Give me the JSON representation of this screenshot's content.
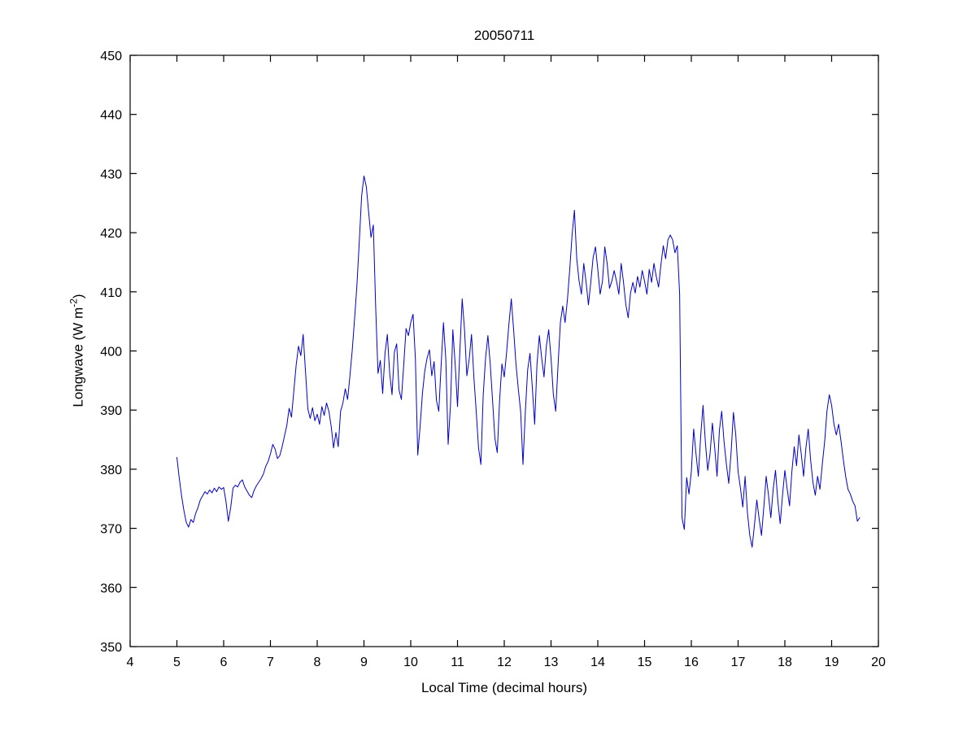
{
  "figure": {
    "title": "20050711",
    "xlabel": "Local Time (decimal hours)",
    "ylabel_prefix": "Longwave (W m",
    "ylabel_sup": "-2",
    "ylabel_suffix": ")",
    "line_color": "#0000cd",
    "axis_color": "#000000",
    "background": "#ffffff"
  },
  "chart_data": {
    "type": "line",
    "title": "20050711",
    "xlabel": "Local Time (decimal hours)",
    "ylabel": "Longwave (W m^-2)",
    "xlim": [
      4,
      20
    ],
    "ylim": [
      350,
      450
    ],
    "xticks": [
      4,
      5,
      6,
      7,
      8,
      9,
      10,
      11,
      12,
      13,
      14,
      15,
      16,
      17,
      18,
      19,
      20
    ],
    "yticks": [
      350,
      360,
      370,
      380,
      390,
      400,
      410,
      420,
      430,
      440,
      450
    ],
    "grid": false,
    "legend": null,
    "points": [
      [
        5.0,
        382
      ],
      [
        5.05,
        378.5
      ],
      [
        5.1,
        375.5
      ],
      [
        5.15,
        373
      ],
      [
        5.2,
        371
      ],
      [
        5.25,
        370.2
      ],
      [
        5.3,
        371.5
      ],
      [
        5.35,
        371
      ],
      [
        5.4,
        372.5
      ],
      [
        5.45,
        373.5
      ],
      [
        5.5,
        374.8
      ],
      [
        5.55,
        375.5
      ],
      [
        5.6,
        376.2
      ],
      [
        5.65,
        375.8
      ],
      [
        5.7,
        376.5
      ],
      [
        5.75,
        376
      ],
      [
        5.8,
        376.8
      ],
      [
        5.85,
        376.2
      ],
      [
        5.9,
        377
      ],
      [
        5.95,
        376.6
      ],
      [
        6.0,
        376.9
      ],
      [
        6.05,
        374.5
      ],
      [
        6.1,
        371.2
      ],
      [
        6.15,
        373.5
      ],
      [
        6.2,
        376.8
      ],
      [
        6.25,
        377.3
      ],
      [
        6.3,
        377
      ],
      [
        6.35,
        377.8
      ],
      [
        6.4,
        378.2
      ],
      [
        6.45,
        377
      ],
      [
        6.5,
        376.3
      ],
      [
        6.55,
        375.6
      ],
      [
        6.6,
        375.2
      ],
      [
        6.65,
        376.4
      ],
      [
        6.7,
        377.2
      ],
      [
        6.75,
        377.8
      ],
      [
        6.8,
        378.4
      ],
      [
        6.85,
        379.2
      ],
      [
        6.9,
        380.5
      ],
      [
        6.95,
        381.3
      ],
      [
        7.0,
        382.6
      ],
      [
        7.05,
        384.2
      ],
      [
        7.1,
        383.4
      ],
      [
        7.15,
        381.8
      ],
      [
        7.2,
        382.3
      ],
      [
        7.25,
        383.8
      ],
      [
        7.3,
        385.6
      ],
      [
        7.35,
        387.4
      ],
      [
        7.4,
        390.3
      ],
      [
        7.45,
        388.8
      ],
      [
        7.5,
        393.2
      ],
      [
        7.55,
        397.6
      ],
      [
        7.6,
        400.8
      ],
      [
        7.65,
        399.2
      ],
      [
        7.7,
        402.8
      ],
      [
        7.75,
        396.5
      ],
      [
        7.8,
        390.2
      ],
      [
        7.85,
        388.6
      ],
      [
        7.9,
        390.4
      ],
      [
        7.95,
        388.2
      ],
      [
        8.0,
        389.3
      ],
      [
        8.05,
        387.6
      ],
      [
        8.1,
        390.6
      ],
      [
        8.15,
        389.1
      ],
      [
        8.2,
        391.2
      ],
      [
        8.25,
        389.8
      ],
      [
        8.3,
        387.2
      ],
      [
        8.35,
        383.6
      ],
      [
        8.4,
        386.2
      ],
      [
        8.45,
        383.8
      ],
      [
        8.5,
        389.8
      ],
      [
        8.55,
        391.2
      ],
      [
        8.6,
        393.6
      ],
      [
        8.65,
        391.8
      ],
      [
        8.7,
        395.8
      ],
      [
        8.75,
        400.2
      ],
      [
        8.8,
        405.5
      ],
      [
        8.85,
        411.2
      ],
      [
        8.9,
        418.5
      ],
      [
        8.95,
        426.2
      ],
      [
        9.0,
        429.6
      ],
      [
        9.05,
        427.8
      ],
      [
        9.1,
        423.5
      ],
      [
        9.15,
        419.2
      ],
      [
        9.2,
        421.3
      ],
      [
        9.25,
        407.5
      ],
      [
        9.3,
        396.2
      ],
      [
        9.35,
        398.4
      ],
      [
        9.4,
        392.8
      ],
      [
        9.45,
        399.6
      ],
      [
        9.5,
        402.8
      ],
      [
        9.55,
        396.2
      ],
      [
        9.6,
        392.6
      ],
      [
        9.65,
        399.8
      ],
      [
        9.7,
        401.2
      ],
      [
        9.75,
        393.4
      ],
      [
        9.8,
        391.8
      ],
      [
        9.85,
        397.6
      ],
      [
        9.9,
        403.8
      ],
      [
        9.95,
        402.6
      ],
      [
        10.0,
        404.8
      ],
      [
        10.05,
        406.2
      ],
      [
        10.1,
        398.6
      ],
      [
        10.15,
        382.4
      ],
      [
        10.2,
        387.2
      ],
      [
        10.25,
        392.8
      ],
      [
        10.3,
        396.6
      ],
      [
        10.35,
        398.8
      ],
      [
        10.4,
        400.2
      ],
      [
        10.45,
        395.8
      ],
      [
        10.5,
        398.2
      ],
      [
        10.55,
        391.6
      ],
      [
        10.6,
        389.8
      ],
      [
        10.65,
        397.6
      ],
      [
        10.7,
        404.8
      ],
      [
        10.75,
        398.6
      ],
      [
        10.8,
        384.2
      ],
      [
        10.85,
        390.8
      ],
      [
        10.9,
        403.6
      ],
      [
        10.95,
        397.8
      ],
      [
        11.0,
        390.6
      ],
      [
        11.05,
        399.8
      ],
      [
        11.1,
        408.8
      ],
      [
        11.15,
        403.6
      ],
      [
        11.2,
        395.8
      ],
      [
        11.25,
        398.6
      ],
      [
        11.3,
        402.8
      ],
      [
        11.35,
        395.6
      ],
      [
        11.4,
        389.8
      ],
      [
        11.45,
        383.6
      ],
      [
        11.5,
        380.8
      ],
      [
        11.55,
        392.6
      ],
      [
        11.6,
        398.8
      ],
      [
        11.65,
        402.6
      ],
      [
        11.7,
        397.8
      ],
      [
        11.75,
        391.6
      ],
      [
        11.8,
        385.2
      ],
      [
        11.85,
        382.8
      ],
      [
        11.9,
        391.6
      ],
      [
        11.95,
        397.8
      ],
      [
        12.0,
        395.6
      ],
      [
        12.05,
        399.8
      ],
      [
        12.1,
        404.6
      ],
      [
        12.15,
        408.8
      ],
      [
        12.2,
        403.6
      ],
      [
        12.25,
        397.8
      ],
      [
        12.3,
        393.6
      ],
      [
        12.35,
        389.8
      ],
      [
        12.4,
        380.8
      ],
      [
        12.45,
        389.6
      ],
      [
        12.5,
        396.8
      ],
      [
        12.55,
        399.6
      ],
      [
        12.6,
        393.8
      ],
      [
        12.65,
        387.6
      ],
      [
        12.7,
        397.8
      ],
      [
        12.75,
        402.6
      ],
      [
        12.8,
        398.8
      ],
      [
        12.85,
        395.6
      ],
      [
        12.9,
        400.8
      ],
      [
        12.95,
        403.6
      ],
      [
        13.0,
        398.8
      ],
      [
        13.05,
        392.6
      ],
      [
        13.1,
        389.8
      ],
      [
        13.15,
        397.6
      ],
      [
        13.2,
        404.8
      ],
      [
        13.25,
        407.6
      ],
      [
        13.3,
        404.8
      ],
      [
        13.35,
        408.6
      ],
      [
        13.4,
        413.8
      ],
      [
        13.45,
        419.6
      ],
      [
        13.5,
        423.8
      ],
      [
        13.55,
        415.6
      ],
      [
        13.6,
        411.8
      ],
      [
        13.65,
        409.6
      ],
      [
        13.7,
        414.8
      ],
      [
        13.75,
        411.6
      ],
      [
        13.8,
        407.8
      ],
      [
        13.85,
        411.6
      ],
      [
        13.9,
        415.8
      ],
      [
        13.95,
        417.6
      ],
      [
        14.0,
        413.8
      ],
      [
        14.05,
        409.6
      ],
      [
        14.1,
        411.8
      ],
      [
        14.15,
        417.6
      ],
      [
        14.2,
        414.8
      ],
      [
        14.25,
        410.6
      ],
      [
        14.3,
        411.8
      ],
      [
        14.35,
        413.6
      ],
      [
        14.4,
        411.8
      ],
      [
        14.45,
        409.6
      ],
      [
        14.5,
        414.8
      ],
      [
        14.55,
        411.6
      ],
      [
        14.6,
        407.8
      ],
      [
        14.65,
        405.6
      ],
      [
        14.7,
        409.8
      ],
      [
        14.75,
        411.6
      ],
      [
        14.8,
        409.8
      ],
      [
        14.85,
        412.6
      ],
      [
        14.9,
        410.8
      ],
      [
        14.95,
        413.6
      ],
      [
        15.0,
        411.8
      ],
      [
        15.05,
        409.6
      ],
      [
        15.1,
        413.8
      ],
      [
        15.15,
        411.6
      ],
      [
        15.2,
        414.8
      ],
      [
        15.25,
        412.6
      ],
      [
        15.3,
        410.8
      ],
      [
        15.35,
        414.6
      ],
      [
        15.4,
        417.8
      ],
      [
        15.45,
        415.6
      ],
      [
        15.5,
        418.8
      ],
      [
        15.55,
        419.6
      ],
      [
        15.6,
        418.8
      ],
      [
        15.65,
        416.6
      ],
      [
        15.7,
        417.8
      ],
      [
        15.75,
        409.6
      ],
      [
        15.8,
        371.8
      ],
      [
        15.85,
        369.8
      ],
      [
        15.9,
        378.6
      ],
      [
        15.95,
        375.8
      ],
      [
        16.0,
        379.6
      ],
      [
        16.05,
        386.8
      ],
      [
        16.1,
        382.6
      ],
      [
        16.15,
        378.8
      ],
      [
        16.2,
        385.6
      ],
      [
        16.25,
        390.8
      ],
      [
        16.3,
        384.6
      ],
      [
        16.35,
        379.8
      ],
      [
        16.4,
        382.6
      ],
      [
        16.45,
        387.8
      ],
      [
        16.5,
        383.6
      ],
      [
        16.55,
        378.8
      ],
      [
        16.6,
        386.6
      ],
      [
        16.65,
        389.8
      ],
      [
        16.7,
        384.6
      ],
      [
        16.75,
        380.8
      ],
      [
        16.8,
        377.6
      ],
      [
        16.85,
        382.8
      ],
      [
        16.9,
        389.6
      ],
      [
        16.95,
        385.8
      ],
      [
        17.0,
        379.6
      ],
      [
        17.05,
        376.8
      ],
      [
        17.1,
        373.6
      ],
      [
        17.15,
        378.8
      ],
      [
        17.2,
        372.6
      ],
      [
        17.25,
        368.8
      ],
      [
        17.3,
        366.8
      ],
      [
        17.35,
        370.6
      ],
      [
        17.4,
        374.8
      ],
      [
        17.45,
        371.6
      ],
      [
        17.5,
        368.8
      ],
      [
        17.55,
        373.6
      ],
      [
        17.6,
        378.8
      ],
      [
        17.65,
        375.6
      ],
      [
        17.7,
        371.8
      ],
      [
        17.75,
        376.6
      ],
      [
        17.8,
        379.8
      ],
      [
        17.85,
        374.6
      ],
      [
        17.9,
        370.8
      ],
      [
        17.95,
        375.6
      ],
      [
        18.0,
        379.8
      ],
      [
        18.05,
        376.6
      ],
      [
        18.1,
        373.8
      ],
      [
        18.15,
        379.6
      ],
      [
        18.2,
        383.8
      ],
      [
        18.25,
        380.6
      ],
      [
        18.3,
        385.8
      ],
      [
        18.35,
        382.6
      ],
      [
        18.4,
        378.8
      ],
      [
        18.45,
        383.6
      ],
      [
        18.5,
        386.8
      ],
      [
        18.55,
        381.6
      ],
      [
        18.6,
        377.8
      ],
      [
        18.65,
        375.6
      ],
      [
        18.7,
        378.8
      ],
      [
        18.75,
        376.6
      ],
      [
        18.8,
        380.8
      ],
      [
        18.85,
        384.6
      ],
      [
        18.9,
        389.8
      ],
      [
        18.95,
        392.6
      ],
      [
        19.0,
        390.8
      ],
      [
        19.05,
        387.6
      ],
      [
        19.1,
        385.8
      ],
      [
        19.15,
        387.6
      ],
      [
        19.2,
        384.8
      ],
      [
        19.25,
        381.6
      ],
      [
        19.3,
        378.8
      ],
      [
        19.35,
        376.6
      ],
      [
        19.4,
        375.8
      ],
      [
        19.45,
        374.6
      ],
      [
        19.5,
        373.8
      ],
      [
        19.55,
        371.2
      ],
      [
        19.6,
        371.8
      ]
    ]
  }
}
